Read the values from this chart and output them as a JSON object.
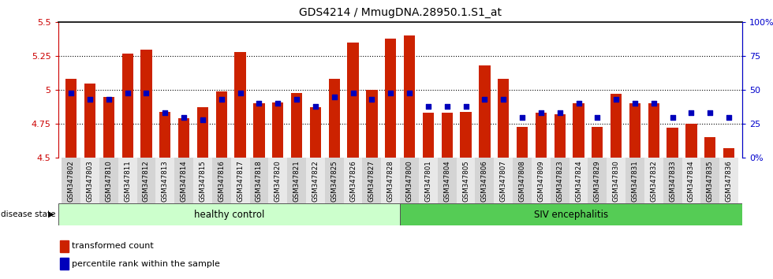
{
  "title": "GDS4214 / MmugDNA.28950.1.S1_at",
  "ylim_left": [
    4.5,
    5.5
  ],
  "ylim_right": [
    0,
    100
  ],
  "yticks_left": [
    4.5,
    4.75,
    5.0,
    5.25,
    5.5
  ],
  "yticks_right": [
    0,
    25,
    50,
    75,
    100
  ],
  "ytick_labels_left": [
    "4.5",
    "4.75",
    "5",
    "5.25",
    "5.5"
  ],
  "ytick_labels_right": [
    "0%",
    "25",
    "50",
    "75",
    "100%"
  ],
  "bar_color": "#cc2200",
  "dot_color": "#0000bb",
  "baseline": 4.5,
  "categories": [
    "GSM347802",
    "GSM347803",
    "GSM347810",
    "GSM347811",
    "GSM347812",
    "GSM347813",
    "GSM347814",
    "GSM347815",
    "GSM347816",
    "GSM347817",
    "GSM347818",
    "GSM347820",
    "GSM347821",
    "GSM347822",
    "GSM347825",
    "GSM347826",
    "GSM347827",
    "GSM347828",
    "GSM347800",
    "GSM347801",
    "GSM347804",
    "GSM347805",
    "GSM347806",
    "GSM347807",
    "GSM347808",
    "GSM347809",
    "GSM347823",
    "GSM347824",
    "GSM347829",
    "GSM347830",
    "GSM347831",
    "GSM347832",
    "GSM347833",
    "GSM347834",
    "GSM347835",
    "GSM347836"
  ],
  "bar_tops": [
    5.08,
    5.05,
    4.95,
    5.27,
    5.3,
    4.84,
    4.79,
    4.87,
    4.99,
    5.28,
    4.9,
    4.91,
    4.98,
    4.87,
    5.08,
    5.35,
    5.0,
    5.38,
    5.4,
    4.83,
    4.83,
    4.84,
    5.18,
    5.08,
    4.73,
    4.83,
    4.82,
    4.9,
    4.73,
    4.97,
    4.9,
    4.9,
    4.72,
    4.75,
    4.65,
    4.57
  ],
  "dot_pct": [
    48,
    43,
    43,
    48,
    48,
    33,
    30,
    28,
    43,
    48,
    40,
    40,
    43,
    38,
    45,
    48,
    43,
    48,
    48,
    38,
    38,
    38,
    43,
    43,
    30,
    33,
    33,
    40,
    30,
    43,
    40,
    40,
    30,
    33,
    33,
    30
  ],
  "healthy_label": "healthy control",
  "siv_label": "SIV encephalitis",
  "healthy_count": 18,
  "disease_state_label": "disease state",
  "legend_bar_label": "transformed count",
  "legend_dot_label": "percentile rank within the sample",
  "healthy_bg": "#ccffcc",
  "siv_bg": "#55cc55",
  "bar_width": 0.6
}
